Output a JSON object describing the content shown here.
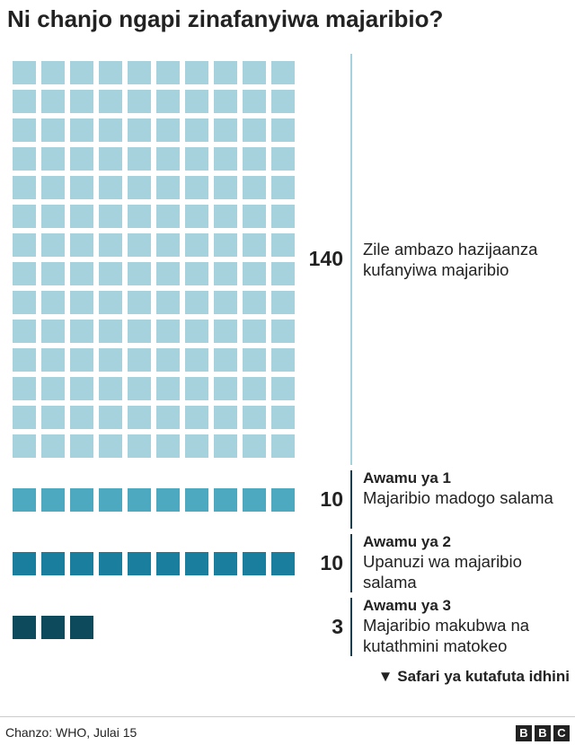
{
  "chart_data": {
    "type": "waffle",
    "title": "Ni chanjo ngapi zinafanyiwa majaribio?",
    "columns": 10,
    "groups": [
      {
        "label": "Zile ambazo hazijaanza kufanyiwa majaribio",
        "value": 140,
        "color": "#a5d2dc",
        "line_color": "#a5d2dc"
      },
      {
        "name": "Awamu ya 1",
        "label": "Majaribio madogo salama",
        "value": 10,
        "color": "#4da9bf",
        "line_color": "#1d3e4e"
      },
      {
        "name": "Awamu ya 2",
        "label": "Upanuzi wa majaribio salama",
        "value": 10,
        "color": "#1a7f9f",
        "line_color": "#1d3e4e"
      },
      {
        "name": "Awamu ya 3",
        "label": "Majaribio makubwa na kutathmini matokeo",
        "value": 3,
        "color": "#0c4a5c",
        "line_color": "#1d3e4e"
      }
    ],
    "note": "Safari ya kutafuta idhini",
    "source": "Chanzo: WHO, Julai 15",
    "logo": [
      "B",
      "B",
      "C"
    ]
  }
}
